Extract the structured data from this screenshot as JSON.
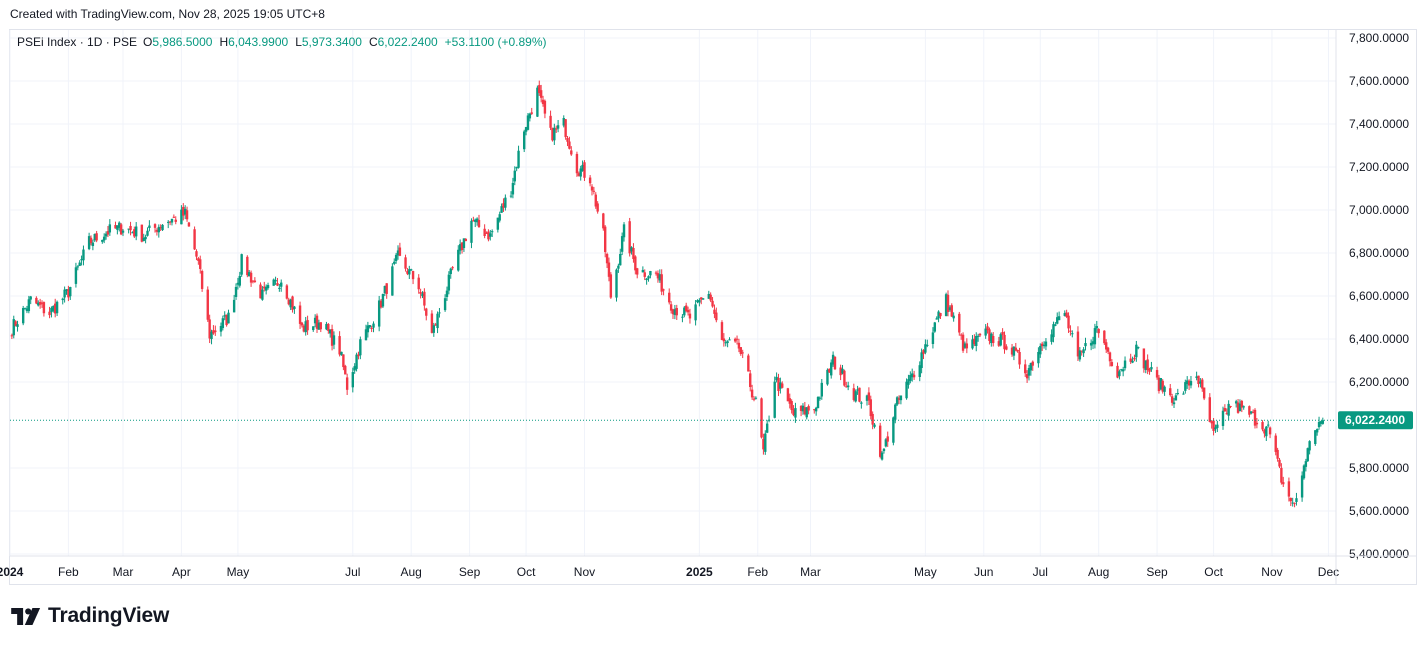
{
  "caption": "Created with TradingView.com, Nov 28, 2025 19:05 UTC+8",
  "legend": {
    "symbol": "PSEi Index · 1D · PSE",
    "open_label": "O",
    "open": "5,986.5000",
    "high_label": "H",
    "high": "6,043.9900",
    "low_label": "L",
    "low": "5,973.3400",
    "close_label": "C",
    "close": "6,022.2400",
    "change": "+53.1100 (+0.89%)"
  },
  "logo": {
    "text": "TradingView",
    "icon": "tradingview-logo-icon"
  },
  "colors": {
    "up": "#089981",
    "down": "#f23645",
    "grid": "#f0f3fa",
    "text": "#131722",
    "last_price": "#089981"
  },
  "chart_data": {
    "type": "candlestick",
    "y_axis": {
      "ylim": [
        5400,
        7800
      ],
      "ticks": [
        {
          "value": 7800,
          "label": "7,800.0000"
        },
        {
          "value": 7600,
          "label": "7,600.0000"
        },
        {
          "value": 7400,
          "label": "7,400.0000"
        },
        {
          "value": 7200,
          "label": "7,200.0000"
        },
        {
          "value": 7000,
          "label": "7,000.0000"
        },
        {
          "value": 6800,
          "label": "6,800.0000"
        },
        {
          "value": 6600,
          "label": "6,600.0000"
        },
        {
          "value": 6400,
          "label": "6,400.0000"
        },
        {
          "value": 6200,
          "label": "6,200.0000"
        },
        {
          "value": 5800,
          "label": "5,800.0000"
        },
        {
          "value": 5600,
          "label": "5,600.0000"
        },
        {
          "value": 5400,
          "label": "5,400.0000"
        }
      ]
    },
    "x_axis": {
      "range": [
        "2024-01-01",
        "2025-12-05"
      ],
      "ticks": [
        {
          "date": "2024-01-01",
          "label": "2024",
          "bold": true
        },
        {
          "date": "2024-02-01",
          "label": "Feb"
        },
        {
          "date": "2024-03-01",
          "label": "Mar"
        },
        {
          "date": "2024-04-01",
          "label": "Apr"
        },
        {
          "date": "2024-05-01",
          "label": "May"
        },
        {
          "date": "2024-07-01",
          "label": "Jul"
        },
        {
          "date": "2024-08-01",
          "label": "Aug"
        },
        {
          "date": "2024-09-01",
          "label": "Sep"
        },
        {
          "date": "2024-10-01",
          "label": "Oct"
        },
        {
          "date": "2024-11-01",
          "label": "Nov"
        },
        {
          "date": "2025-01-01",
          "label": "2025",
          "bold": true
        },
        {
          "date": "2025-02-01",
          "label": "Feb"
        },
        {
          "date": "2025-03-01",
          "label": "Mar"
        },
        {
          "date": "2025-05-01",
          "label": "May"
        },
        {
          "date": "2025-06-01",
          "label": "Jun"
        },
        {
          "date": "2025-07-01",
          "label": "Jul"
        },
        {
          "date": "2025-08-01",
          "label": "Aug"
        },
        {
          "date": "2025-09-01",
          "label": "Sep"
        },
        {
          "date": "2025-10-01",
          "label": "Oct"
        },
        {
          "date": "2025-11-01",
          "label": "Nov"
        },
        {
          "date": "2025-12-01",
          "label": "Dec"
        }
      ]
    },
    "last_price": {
      "value": 6022.24,
      "label": "6,022.2400"
    },
    "series": [
      {
        "name": "PSEi Index",
        "closes": [
          {
            "date": "2024-01-02",
            "close": 6450
          },
          {
            "date": "2024-01-12",
            "close": 6580
          },
          {
            "date": "2024-01-22",
            "close": 6520
          },
          {
            "date": "2024-02-01",
            "close": 6620
          },
          {
            "date": "2024-02-12",
            "close": 6850
          },
          {
            "date": "2024-02-22",
            "close": 6900
          },
          {
            "date": "2024-03-01",
            "close": 6920
          },
          {
            "date": "2024-03-12",
            "close": 6880
          },
          {
            "date": "2024-03-22",
            "close": 6940
          },
          {
            "date": "2024-04-03",
            "close": 6980
          },
          {
            "date": "2024-04-10",
            "close": 6750
          },
          {
            "date": "2024-04-16",
            "close": 6420
          },
          {
            "date": "2024-04-26",
            "close": 6500
          },
          {
            "date": "2024-05-03",
            "close": 6760
          },
          {
            "date": "2024-05-14",
            "close": 6600
          },
          {
            "date": "2024-05-24",
            "close": 6680
          },
          {
            "date": "2024-06-04",
            "close": 6450
          },
          {
            "date": "2024-06-14",
            "close": 6480
          },
          {
            "date": "2024-06-24",
            "close": 6350
          },
          {
            "date": "2024-06-28",
            "close": 6180
          },
          {
            "date": "2024-07-05",
            "close": 6380
          },
          {
            "date": "2024-07-15",
            "close": 6550
          },
          {
            "date": "2024-07-25",
            "close": 6780
          },
          {
            "date": "2024-08-05",
            "close": 6650
          },
          {
            "date": "2024-08-12",
            "close": 6420
          },
          {
            "date": "2024-08-23",
            "close": 6720
          },
          {
            "date": "2024-09-02",
            "close": 6950
          },
          {
            "date": "2024-09-12",
            "close": 6880
          },
          {
            "date": "2024-09-23",
            "close": 7100
          },
          {
            "date": "2024-09-30",
            "close": 7380
          },
          {
            "date": "2024-10-07",
            "close": 7550
          },
          {
            "date": "2024-10-14",
            "close": 7350
          },
          {
            "date": "2024-10-21",
            "close": 7400
          },
          {
            "date": "2024-10-28",
            "close": 7200
          },
          {
            "date": "2024-11-04",
            "close": 7150
          },
          {
            "date": "2024-11-11",
            "close": 6880
          },
          {
            "date": "2024-11-15",
            "close": 6600
          },
          {
            "date": "2024-11-22",
            "close": 6900
          },
          {
            "date": "2024-11-29",
            "close": 6720
          },
          {
            "date": "2024-12-09",
            "close": 6700
          },
          {
            "date": "2024-12-18",
            "close": 6550
          },
          {
            "date": "2024-12-27",
            "close": 6500
          },
          {
            "date": "2025-01-06",
            "close": 6620
          },
          {
            "date": "2025-01-13",
            "close": 6380
          },
          {
            "date": "2025-01-22",
            "close": 6360
          },
          {
            "date": "2025-01-31",
            "close": 6100
          },
          {
            "date": "2025-02-04",
            "close": 5870
          },
          {
            "date": "2025-02-10",
            "close": 6220
          },
          {
            "date": "2025-02-20",
            "close": 6050
          },
          {
            "date": "2025-03-03",
            "close": 6080
          },
          {
            "date": "2025-03-13",
            "close": 6300
          },
          {
            "date": "2025-03-24",
            "close": 6150
          },
          {
            "date": "2025-04-01",
            "close": 6100
          },
          {
            "date": "2025-04-08",
            "close": 5850
          },
          {
            "date": "2025-04-15",
            "close": 6080
          },
          {
            "date": "2025-04-25",
            "close": 6250
          },
          {
            "date": "2025-05-05",
            "close": 6450
          },
          {
            "date": "2025-05-12",
            "close": 6580
          },
          {
            "date": "2025-05-22",
            "close": 6350
          },
          {
            "date": "2025-06-02",
            "close": 6420
          },
          {
            "date": "2025-06-13",
            "close": 6380
          },
          {
            "date": "2025-06-24",
            "close": 6250
          },
          {
            "date": "2025-07-04",
            "close": 6420
          },
          {
            "date": "2025-07-14",
            "close": 6520
          },
          {
            "date": "2025-07-21",
            "close": 6300
          },
          {
            "date": "2025-07-31",
            "close": 6450
          },
          {
            "date": "2025-08-11",
            "close": 6250
          },
          {
            "date": "2025-08-21",
            "close": 6350
          },
          {
            "date": "2025-09-01",
            "close": 6200
          },
          {
            "date": "2025-09-11",
            "close": 6120
          },
          {
            "date": "2025-09-22",
            "close": 6240
          },
          {
            "date": "2025-10-01",
            "close": 5950
          },
          {
            "date": "2025-10-10",
            "close": 6100
          },
          {
            "date": "2025-10-20",
            "close": 6050
          },
          {
            "date": "2025-10-30",
            "close": 5980
          },
          {
            "date": "2025-11-07",
            "close": 5720
          },
          {
            "date": "2025-11-13",
            "close": 5620
          },
          {
            "date": "2025-11-19",
            "close": 5850
          },
          {
            "date": "2025-11-24",
            "close": 5990
          },
          {
            "date": "2025-11-28",
            "close": 6022
          }
        ]
      }
    ],
    "grid": true
  }
}
